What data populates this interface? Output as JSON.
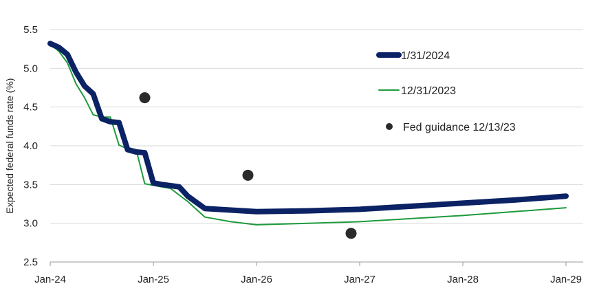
{
  "chart_data": {
    "type": "line",
    "ylabel": "Expected federal funds rate (%)",
    "ylim": [
      2.5,
      5.5
    ],
    "yticks": [
      2.5,
      3.0,
      3.5,
      4.0,
      4.5,
      5.0,
      5.5
    ],
    "ytick_labels": [
      "2.5",
      "3.0",
      "3.5",
      "4.0",
      "4.5",
      "5.0",
      "5.5"
    ],
    "xlim": [
      "2024-01",
      "2029-01"
    ],
    "xticks": [
      "2024-01",
      "2025-01",
      "2026-01",
      "2027-01",
      "2028-01",
      "2029-01"
    ],
    "xtick_labels": [
      "Jan-24",
      "Jan-25",
      "Jan-26",
      "Jan-27",
      "Jan-28",
      "Jan-29"
    ],
    "grid": "horizontal",
    "legend_position": "top-right",
    "series": [
      {
        "name": "1/31/2024",
        "color": "#0b2265",
        "style": "thick-line",
        "x": [
          "2024-01",
          "2024-02",
          "2024-03",
          "2024-04",
          "2024-05",
          "2024-06",
          "2024-07",
          "2024-08",
          "2024-09",
          "2024-10",
          "2024-11",
          "2024-12",
          "2025-01",
          "2025-02",
          "2025-04",
          "2025-05",
          "2025-07",
          "2025-10",
          "2026-01",
          "2026-07",
          "2027-01",
          "2027-07",
          "2028-01",
          "2028-07",
          "2029-01"
        ],
        "values": [
          5.32,
          5.27,
          5.18,
          4.95,
          4.77,
          4.67,
          4.35,
          4.31,
          4.3,
          3.95,
          3.92,
          3.91,
          3.52,
          3.5,
          3.47,
          3.35,
          3.19,
          3.17,
          3.15,
          3.16,
          3.18,
          3.22,
          3.26,
          3.3,
          3.35
        ]
      },
      {
        "name": "12/31/2023",
        "color": "#1e9a3c",
        "style": "thin-line",
        "x": [
          "2024-01",
          "2024-02",
          "2024-03",
          "2024-04",
          "2024-05",
          "2024-06",
          "2024-07",
          "2024-08",
          "2024-09",
          "2024-10",
          "2024-11",
          "2024-12",
          "2025-01",
          "2025-03",
          "2025-05",
          "2025-07",
          "2025-10",
          "2026-01",
          "2026-07",
          "2027-01",
          "2027-07",
          "2028-01",
          "2028-07",
          "2029-01"
        ],
        "values": [
          5.31,
          5.22,
          5.07,
          4.8,
          4.62,
          4.4,
          4.37,
          4.37,
          4.01,
          3.96,
          3.95,
          3.51,
          3.49,
          3.45,
          3.28,
          3.08,
          3.02,
          2.98,
          3.0,
          3.02,
          3.06,
          3.1,
          3.15,
          3.2
        ]
      },
      {
        "name": "Fed guidance 12/13/23",
        "color": "#2b2b2b",
        "style": "dots",
        "x": [
          "2024-12",
          "2025-12",
          "2026-12"
        ],
        "values": [
          4.62,
          3.62,
          2.87
        ]
      }
    ]
  }
}
